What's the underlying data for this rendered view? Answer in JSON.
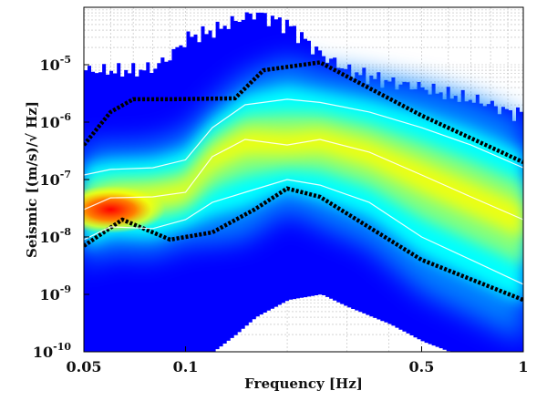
{
  "chart_data": {
    "type": "heatmap",
    "title": "",
    "xlabel": "Frequency [Hz]",
    "ylabel": "Seismic [(m/s)/√ Hz]",
    "x_scale": "log",
    "y_scale": "log",
    "xlim": [
      0.05,
      1
    ],
    "ylim": [
      1e-10,
      0.0001
    ],
    "x_ticks": [
      {
        "value": 0.05,
        "label": "0.05"
      },
      {
        "value": 0.1,
        "label": "0.1"
      },
      {
        "value": 0.5,
        "label": "0.5"
      },
      {
        "value": 1,
        "label": "1"
      }
    ],
    "y_ticks": [
      {
        "value": 1e-10,
        "base": "10",
        "exp": "-10"
      },
      {
        "value": 1e-09,
        "base": "10",
        "exp": "-9"
      },
      {
        "value": 1e-08,
        "base": "10",
        "exp": "-8"
      },
      {
        "value": 1e-07,
        "base": "10",
        "exp": "-7"
      },
      {
        "value": 1e-06,
        "base": "10",
        "exp": "-6"
      },
      {
        "value": 1e-05,
        "base": "10",
        "exp": "-5"
      }
    ],
    "colormap": [
      "#00008f",
      "#0000ff",
      "#0080ff",
      "#00ffff",
      "#80ff80",
      "#ffff00",
      "#ff8000",
      "#ff0000",
      "#800000"
    ],
    "density_envelope": {
      "x": [
        0.05,
        0.055,
        0.06,
        0.07,
        0.08,
        0.09,
        0.1,
        0.12,
        0.14,
        0.16,
        0.2,
        0.25,
        0.3,
        0.4,
        0.5,
        0.6,
        0.7,
        0.8,
        0.9,
        1.0
      ],
      "upper": [
        8e-06,
        8e-06,
        8e-06,
        8e-06,
        9e-06,
        1.5e-05,
        3e-05,
        4e-05,
        6e-05,
        8e-05,
        5e-05,
        1.5e-05,
        8e-06,
        5e-06,
        4e-06,
        3e-06,
        2.5e-06,
        2e-06,
        1.5e-06,
        1.5e-06
      ],
      "lower": [
        1e-10,
        1e-10,
        1e-10,
        1e-10,
        1e-10,
        1e-10,
        1e-10,
        1e-10,
        2e-10,
        4e-10,
        8e-10,
        1e-09,
        6e-10,
        3e-10,
        1.5e-10,
        1e-10,
        1e-10,
        1e-10,
        1e-10,
        1e-10
      ]
    },
    "series": [
      {
        "name": "outer-upper-bound",
        "style": "dotted",
        "color": "#000000",
        "x": [
          0.05,
          0.06,
          0.07,
          0.09,
          0.14,
          0.17,
          0.25,
          0.5,
          1.0
        ],
        "y": [
          4e-07,
          1.5e-06,
          2.5e-06,
          2.5e-06,
          2.6e-06,
          8e-06,
          1.1e-05,
          1.3e-06,
          2e-07
        ]
      },
      {
        "name": "outer-lower-bound",
        "style": "dotted",
        "color": "#000000",
        "x": [
          0.05,
          0.065,
          0.09,
          0.12,
          0.16,
          0.2,
          0.25,
          0.5,
          1.0
        ],
        "y": [
          7e-09,
          2e-08,
          9e-09,
          1.2e-08,
          3e-08,
          7e-08,
          5e-08,
          4e-09,
          8e-10
        ]
      },
      {
        "name": "percentile-upper",
        "style": "solid",
        "color": "#ffffff",
        "x": [
          0.05,
          0.06,
          0.08,
          0.1,
          0.12,
          0.15,
          0.2,
          0.25,
          0.35,
          0.5,
          0.7,
          1.0
        ],
        "y": [
          1.2e-07,
          1.5e-07,
          1.6e-07,
          2.2e-07,
          8e-07,
          2e-06,
          2.5e-06,
          2.2e-06,
          1.5e-06,
          8e-07,
          4e-07,
          1.6e-07
        ]
      },
      {
        "name": "percentile-median",
        "style": "solid",
        "color": "#ffffff",
        "x": [
          0.05,
          0.06,
          0.08,
          0.1,
          0.12,
          0.15,
          0.2,
          0.25,
          0.35,
          0.5,
          0.7,
          1.0
        ],
        "y": [
          3e-08,
          4.8e-08,
          5e-08,
          6e-08,
          2.5e-07,
          5e-07,
          4e-07,
          5e-07,
          3e-07,
          1.2e-07,
          5e-08,
          2e-08
        ]
      },
      {
        "name": "percentile-lower",
        "style": "solid",
        "color": "#ffffff",
        "x": [
          0.05,
          0.06,
          0.08,
          0.1,
          0.12,
          0.15,
          0.2,
          0.25,
          0.35,
          0.5,
          0.7,
          1.0
        ],
        "y": [
          9e-09,
          1.5e-08,
          1.4e-08,
          2e-08,
          4e-08,
          6e-08,
          1e-07,
          8e-08,
          4e-08,
          1e-08,
          4e-09,
          1.5e-09
        ]
      }
    ],
    "hot_spot": {
      "x": 0.06,
      "y": 3e-08,
      "color": "#ff0000"
    },
    "grid": true
  }
}
